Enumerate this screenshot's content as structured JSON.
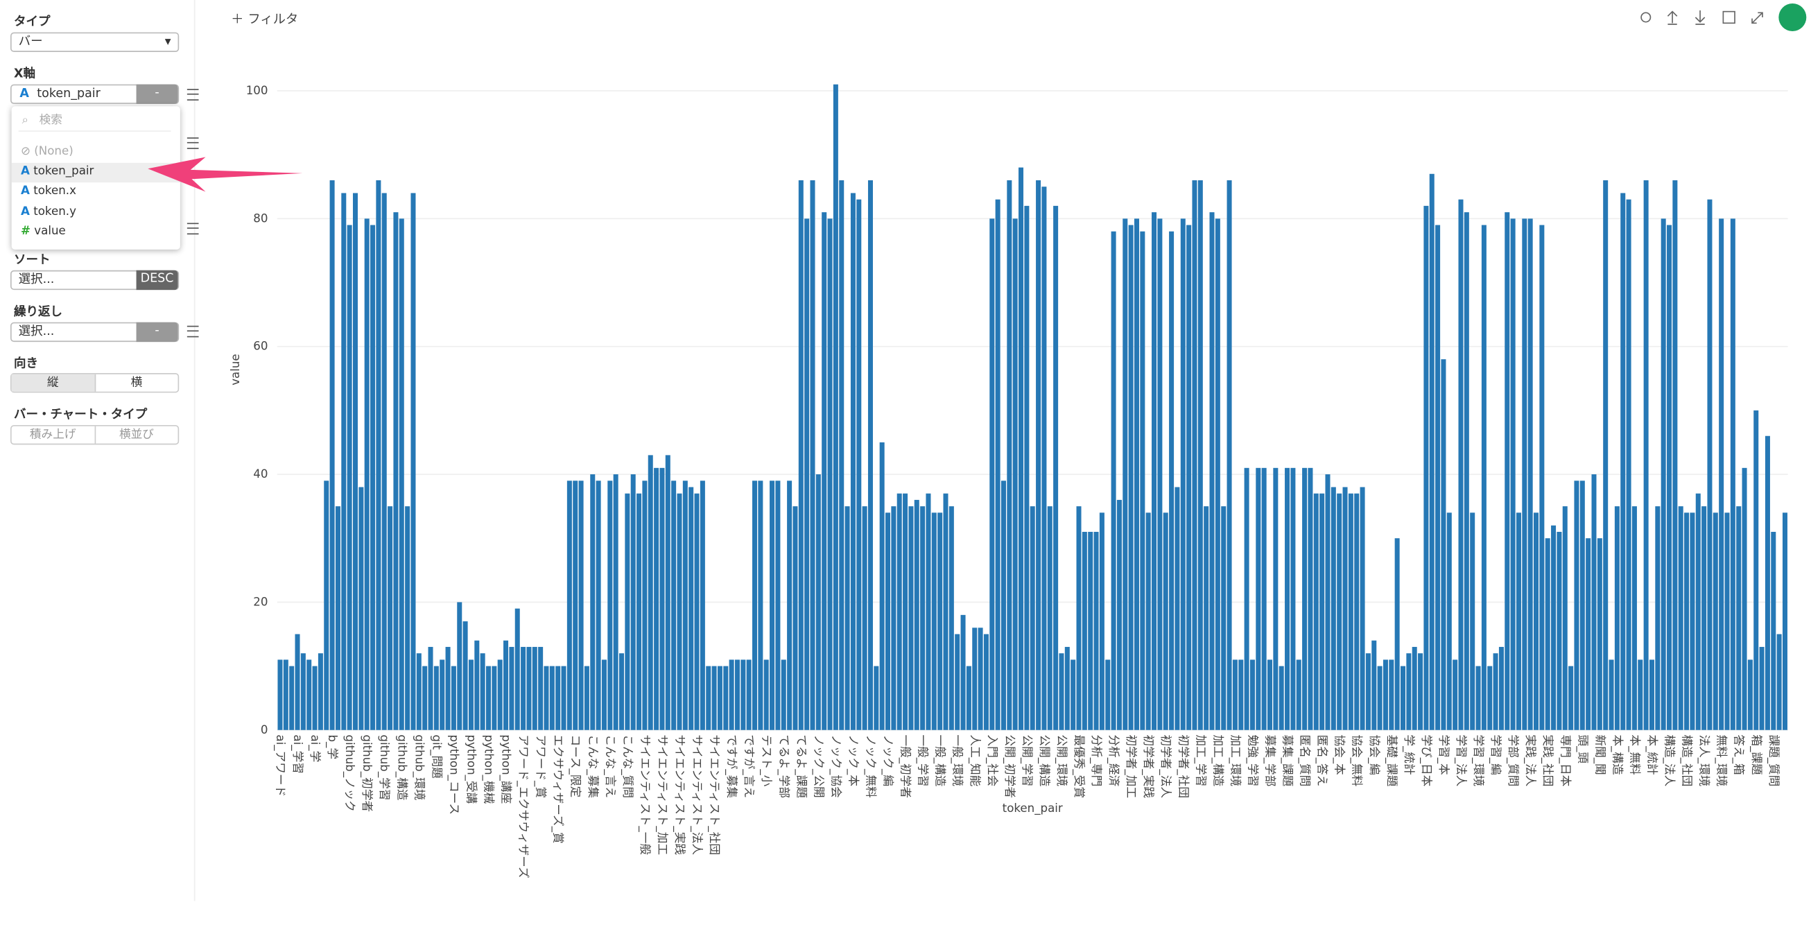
{
  "ui": {
    "filter": "フィルタ",
    "type_label": "タイプ",
    "type_value": "バー",
    "x_label": "X軸",
    "x_value": "token_pair",
    "x_button": "-",
    "search_placeholder": "検索",
    "options": [
      "(None)",
      "token_pair",
      "token.x",
      "token.y",
      "value"
    ],
    "sort_label": "ソート",
    "sort_value": "選択...",
    "sort_button": "DESC",
    "repeat_label": "繰り返し",
    "repeat_value": "選択...",
    "repeat_button": "-",
    "orient_label": "向き",
    "orient_options": [
      "縦",
      "横"
    ],
    "bartype_label": "バー・チャート・タイプ",
    "bartype_options": [
      "積み上げ",
      "横並び"
    ]
  },
  "chart_data": {
    "type": "bar",
    "xlabel": "token_pair",
    "ylabel": "value",
    "color": "#2678b5",
    "grid": true,
    "ylim": [
      0,
      103
    ],
    "yticks": [
      0,
      20,
      40,
      60,
      80,
      100
    ],
    "categories": [
      "ai_アワード",
      null,
      null,
      "ai_学習",
      null,
      null,
      "ai_学",
      null,
      null,
      "b_学",
      null,
      null,
      "github_ノック",
      null,
      null,
      "github_初学者",
      null,
      null,
      "github_学習",
      null,
      null,
      "github_構造",
      null,
      null,
      "github_環境",
      null,
      null,
      "git_問題",
      null,
      null,
      "python_コース",
      null,
      null,
      "python_受講",
      null,
      null,
      "python_機械",
      null,
      null,
      "python_講座",
      null,
      null,
      "アワード_エクサウィザーズ",
      null,
      null,
      "アワード_賞",
      null,
      null,
      "エクサウィザーズ_賞",
      null,
      null,
      "コース_限定",
      null,
      null,
      "こんな_募集",
      null,
      null,
      "こんな_言え",
      null,
      null,
      "こんな_質問",
      null,
      null,
      "サイエンティスト_一般",
      null,
      null,
      "サイエンティスト_加工",
      null,
      null,
      "サイエンティスト_実践",
      null,
      null,
      "サイエンティスト_法人",
      null,
      null,
      "サイエンティスト_社団",
      null,
      null,
      "ですが_募集",
      null,
      null,
      "ですが_言え",
      null,
      null,
      "テスト_小",
      null,
      null,
      "てるよ_学部",
      null,
      null,
      "てるよ_課題",
      null,
      null,
      "ノック_公開",
      null,
      null,
      "ノック_協会",
      null,
      null,
      "ノック_本",
      null,
      null,
      "ノック_無料",
      null,
      null,
      "ノック_編",
      null,
      null,
      "一般_初学者",
      null,
      null,
      "一般_学習",
      null,
      null,
      "一般_構造",
      null,
      null,
      "一般_環境",
      null,
      null,
      "人工_知能",
      null,
      null,
      "入門_社会",
      null,
      null,
      "公開_初学者",
      null,
      null,
      "公開_学習",
      null,
      null,
      "公開_構造",
      null,
      null,
      "公開_環境",
      null,
      null,
      "最優秀_受賞",
      null,
      null,
      "分析_専門",
      null,
      null,
      "分析_経済",
      null,
      null,
      "初学者_加工",
      null,
      null,
      "初学者_実践",
      null,
      null,
      "初学者_法人",
      null,
      null,
      "初学者_社団",
      null,
      null,
      "加工_学習",
      null,
      null,
      "加工_構造",
      null,
      null,
      "加工_環境",
      null,
      null,
      "勉強_学習",
      null,
      null,
      "募集_学部",
      null,
      null,
      "募集_課題",
      null,
      null,
      "匿名_質問",
      null,
      null,
      "匿名_答え",
      null,
      null,
      "協会_本",
      null,
      null,
      "協会_無料",
      null,
      null,
      "協会_編",
      null,
      null,
      "基礎_課題",
      null,
      null,
      "学_統計",
      null,
      null,
      "学び_日本",
      null,
      null,
      "学習_本",
      null,
      null,
      "学習_法人",
      null,
      null,
      "学習_環境",
      null,
      null,
      "学習_編",
      null,
      null,
      "学部_質問",
      null,
      null,
      "実践_法人",
      null,
      null,
      "実践_社団",
      null,
      null,
      "専門_日本",
      null,
      null,
      "頭_頭",
      null,
      null,
      "新聞_聞",
      null,
      null,
      "本_構造",
      null,
      null,
      "本_無料",
      null,
      null,
      "本_統計",
      null,
      null,
      "構造_法人",
      null,
      null,
      "構造_社団",
      null,
      null,
      "法人_環境",
      null,
      null,
      "無料_環境",
      null,
      null,
      "答え_箱",
      null,
      null,
      "箱_課題",
      null,
      null,
      "課題_質問",
      null,
      null
    ],
    "values": [
      11,
      11,
      10,
      15,
      12,
      11,
      10,
      12,
      39,
      86,
      35,
      84,
      79,
      84,
      38,
      80,
      79,
      86,
      84,
      35,
      81,
      80,
      35,
      84,
      12,
      10,
      13,
      10,
      11,
      13,
      10,
      20,
      17,
      11,
      14,
      12,
      10,
      10,
      11,
      14,
      13,
      19,
      13,
      13,
      13,
      13,
      10,
      10,
      10,
      10,
      39,
      39,
      39,
      10,
      40,
      39,
      11,
      39,
      40,
      12,
      37,
      40,
      37,
      39,
      43,
      41,
      41,
      43,
      39,
      37,
      39,
      38,
      37,
      39,
      10,
      10,
      10,
      10,
      11,
      11,
      11,
      11,
      39,
      39,
      11,
      39,
      39,
      11,
      39,
      35,
      86,
      80,
      86,
      40,
      81,
      80,
      101,
      86,
      35,
      84,
      83,
      35,
      86,
      10,
      45,
      34,
      35,
      37,
      37,
      35,
      36,
      35,
      37,
      34,
      34,
      37,
      35,
      15,
      18,
      10,
      16,
      16,
      15,
      80,
      83,
      39,
      86,
      80,
      88,
      82,
      35,
      86,
      85,
      35,
      82,
      12,
      13,
      11,
      35,
      31,
      31,
      31,
      34,
      11,
      78,
      36,
      80,
      79,
      80,
      78,
      34,
      81,
      80,
      34,
      78,
      38,
      80,
      79,
      86,
      86,
      35,
      81,
      80,
      35,
      86,
      11,
      11,
      41,
      11,
      41,
      41,
      11,
      41,
      10,
      41,
      41,
      11,
      41,
      41,
      37,
      37,
      40,
      38,
      37,
      38,
      37,
      37,
      38,
      12,
      14,
      10,
      11,
      11,
      30,
      10,
      12,
      13,
      12,
      82,
      87,
      79,
      58,
      34,
      11,
      83,
      81,
      34,
      10,
      79,
      10,
      12,
      13,
      81,
      80,
      34,
      80,
      80,
      34,
      79,
      30,
      32,
      31,
      35,
      10,
      39,
      39,
      30,
      40,
      30,
      86,
      11,
      35,
      84,
      83,
      35,
      11,
      86,
      11,
      35,
      80,
      79,
      86,
      35,
      34,
      34,
      37,
      35,
      83,
      34,
      80,
      34,
      80,
      35,
      41,
      11,
      50,
      13,
      46,
      31,
      15,
      34
    ]
  }
}
